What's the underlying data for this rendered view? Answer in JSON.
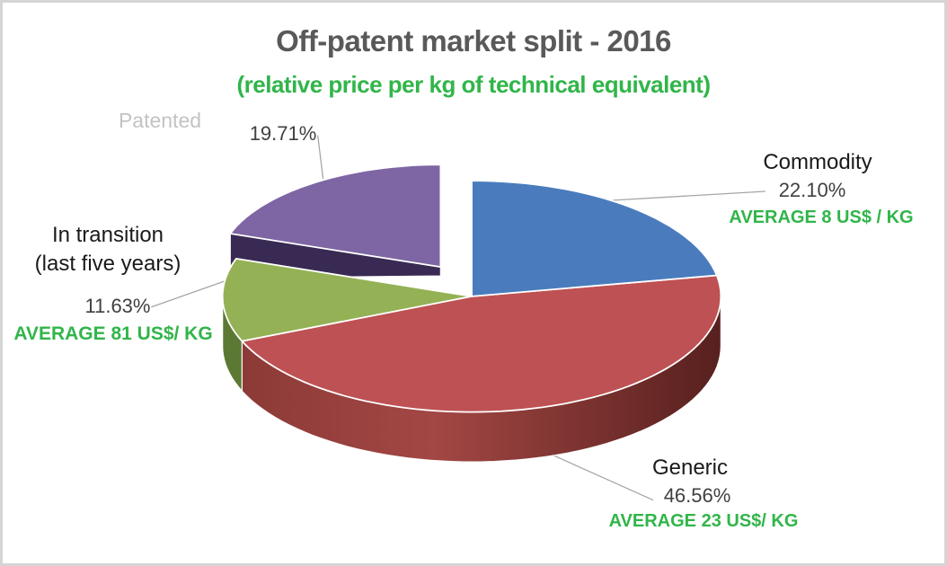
{
  "page": {
    "background": "#FFFFFF",
    "border_color": "#D5D5D5"
  },
  "theme": {
    "page_border": "#D5D5D5",
    "title_color": "#595959",
    "accent_green": "#31B54A",
    "label_dark": "#1A1A1A",
    "pct_color": "#404040",
    "muted_label": "#C3C3C3",
    "leader_line": "#A6A6A6"
  },
  "chart_data": {
    "type": "pie",
    "style": "3d-exploded",
    "title": "Off-patent market split - 2016",
    "subtitle": "(relative price per kg of technical equivalent)",
    "start_angle_deg": 0,
    "direction": "clockwise",
    "legend": "none",
    "slices": [
      {
        "label": "Commodity",
        "value": 22.1,
        "pct_text": "22.10%",
        "avg_text": "AVERAGE 8 US$ / KG",
        "color": "#4A7CBD",
        "exploded": false
      },
      {
        "label": "Generic",
        "value": 46.56,
        "pct_text": "46.56%",
        "avg_text": "AVERAGE 23 US$/ KG",
        "color": "#BE5153",
        "side_colors": [
          "#8C3A37",
          "#A34744",
          "#57201E"
        ],
        "exploded": false
      },
      {
        "label": "In transition (last five years)",
        "label_line1": "In transition",
        "label_line2": "(last five years)",
        "value": 11.63,
        "pct_text": "11.63%",
        "avg_text": "AVERAGE 81 US$/ KG",
        "color": "#95B155",
        "side_color": "#5C7933",
        "exploded": false
      },
      {
        "label": "Patented",
        "value": 19.71,
        "pct_text": "19.71%",
        "color": "#7D66A3",
        "side_color": "#382A52",
        "exploded": true
      }
    ]
  }
}
